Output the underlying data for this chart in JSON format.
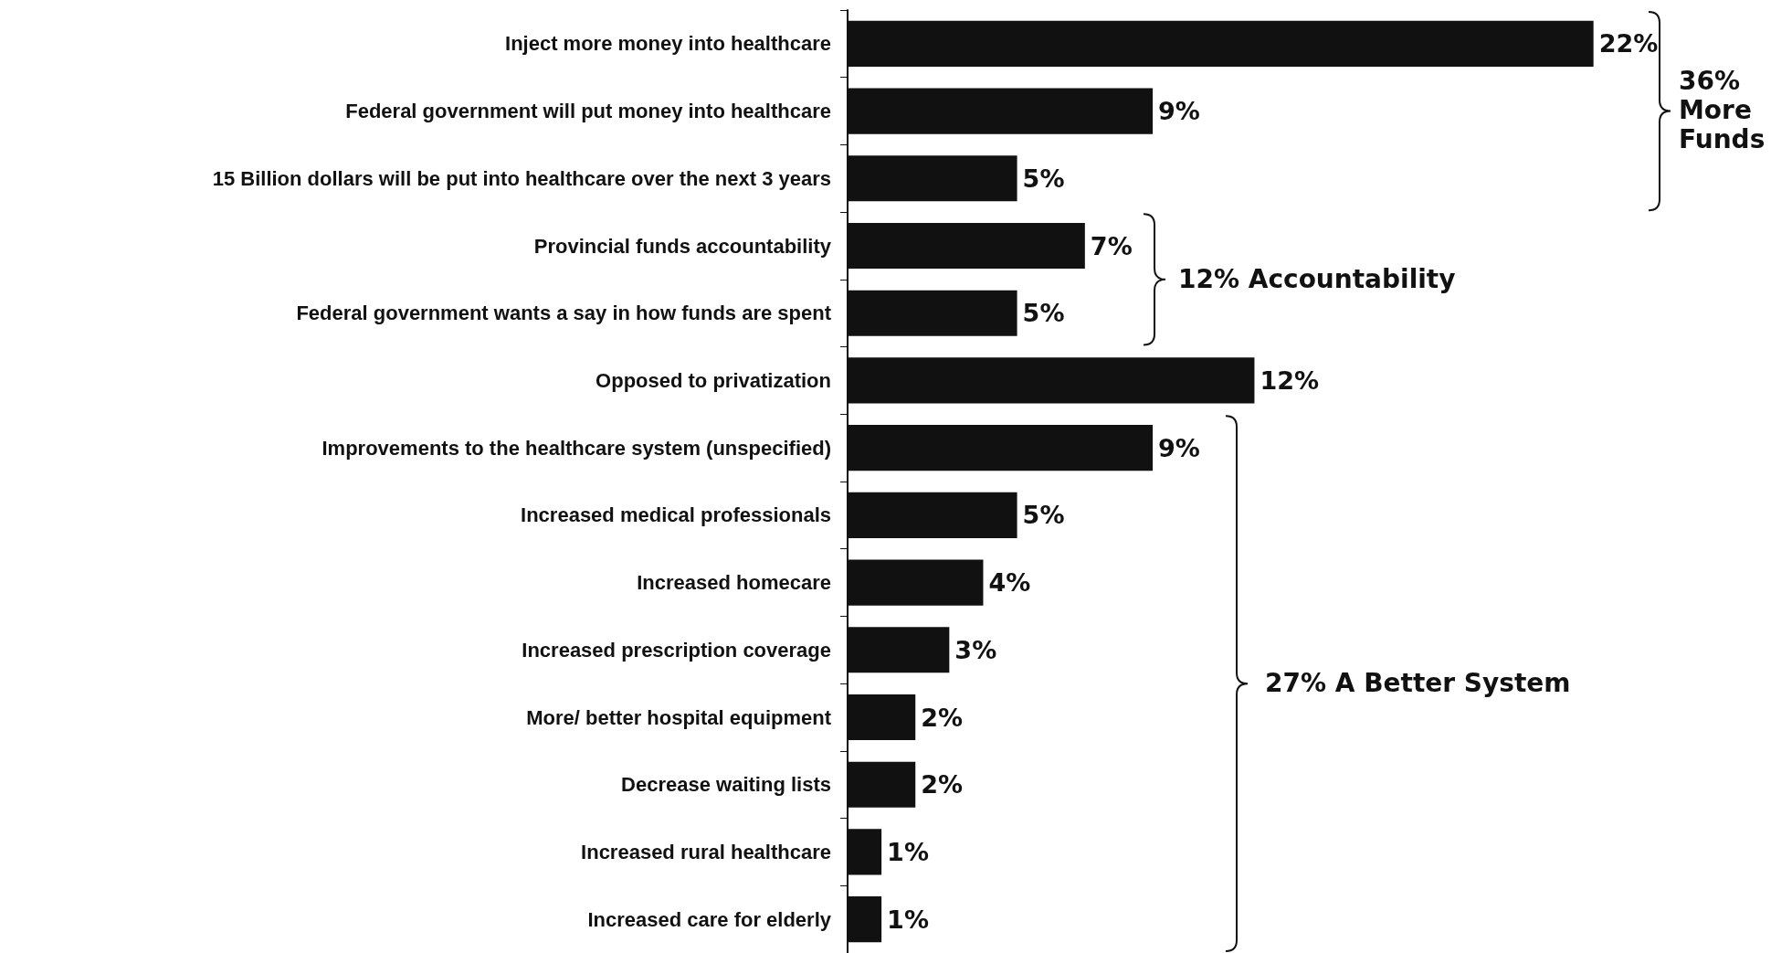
{
  "chart_data": {
    "type": "bar",
    "orientation": "horizontal",
    "categories": [
      "Inject more money into healthcare",
      "Federal government will put money into healthcare",
      "15 Billion dollars will be put into healthcare over the next 3 years",
      "Provincial funds accountability",
      "Federal government wants a say in how funds are spent",
      "Opposed to privatization",
      "Improvements to the healthcare system (unspecified)",
      "Increased medical professionals",
      "Increased homecare",
      "Increased prescription coverage",
      "More/ better hospital equipment",
      "Decrease waiting lists",
      "Increased rural healthcare",
      "Increased care for elderly"
    ],
    "values": [
      22,
      9,
      5,
      7,
      5,
      12,
      9,
      5,
      4,
      3,
      2,
      2,
      1,
      1
    ],
    "value_labels": [
      "22%",
      "9%",
      "5%",
      "7%",
      "5%",
      "12%",
      "9%",
      "5%",
      "4%",
      "3%",
      "2%",
      "2%",
      "1%",
      "1%"
    ],
    "color": "#111111",
    "annotations": [
      "36% More Funds",
      "12% Accountability",
      "27% A Better System"
    ]
  }
}
